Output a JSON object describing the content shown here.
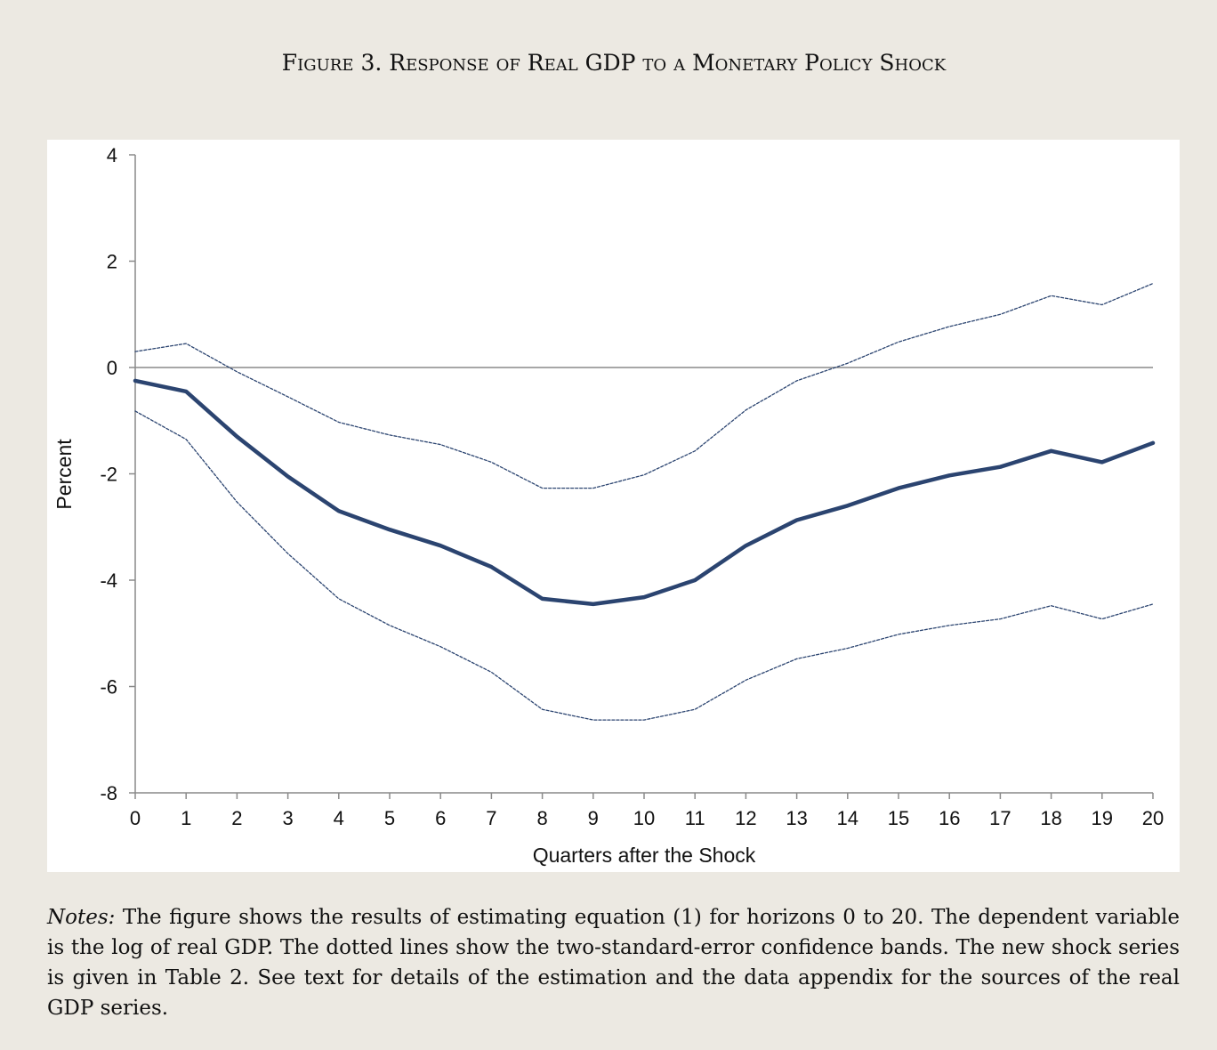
{
  "figure_title": "Figure 3. Response of Real GDP to a Monetary Policy Shock",
  "notes": {
    "lead": "Notes:",
    "text": "The figure shows the results of estimating equation (1) for horizons 0 to 20. The dependent variable is the log of real GDP. The dotted lines show the two-standard-error confidence bands. The new shock series is given in Table 2. See text for details of the estimation and the data appendix for the sources of the real GDP series."
  },
  "colors": {
    "background": "#ece9e2",
    "panel": "#ffffff",
    "line": "#2b4470",
    "axis": "#8a8a8a"
  },
  "chart_data": {
    "type": "line",
    "title": "",
    "xlabel": "Quarters after the Shock",
    "ylabel": "Percent",
    "x": [
      0,
      1,
      2,
      3,
      4,
      5,
      6,
      7,
      8,
      9,
      10,
      11,
      12,
      13,
      14,
      15,
      16,
      17,
      18,
      19,
      20
    ],
    "xlim": [
      0,
      20
    ],
    "ylim": [
      -8,
      4
    ],
    "yticks": [
      4,
      2,
      0,
      -2,
      -4,
      -6,
      -8
    ],
    "xticks": [
      "0",
      "1",
      "2",
      "3",
      "4",
      "5",
      "6",
      "7",
      "8",
      "9",
      "10",
      "11",
      "12",
      "13",
      "14",
      "15",
      "16",
      "17",
      "18",
      "19",
      "20"
    ],
    "ytick_labels": [
      "4",
      "2",
      "0",
      "-2",
      "-4",
      "-6",
      "-8"
    ],
    "zero_line": true,
    "grid": false,
    "legend": "none",
    "series": [
      {
        "role": "estimate",
        "style": "solid",
        "values": [
          -0.25,
          -0.45,
          -1.3,
          -2.05,
          -2.7,
          -3.05,
          -3.35,
          -3.75,
          -4.35,
          -4.45,
          -4.32,
          -4.0,
          -3.35,
          -2.87,
          -2.6,
          -2.27,
          -2.03,
          -1.87,
          -1.57,
          -1.78,
          -1.42
        ]
      },
      {
        "role": "upper-band",
        "style": "dotted",
        "values": [
          0.3,
          0.45,
          -0.08,
          -0.55,
          -1.03,
          -1.27,
          -1.45,
          -1.78,
          -2.27,
          -2.27,
          -2.02,
          -1.57,
          -0.8,
          -0.25,
          0.08,
          0.48,
          0.77,
          1.0,
          1.35,
          1.18,
          1.58
        ]
      },
      {
        "role": "lower-band",
        "style": "dotted",
        "values": [
          -0.82,
          -1.35,
          -2.53,
          -3.5,
          -4.35,
          -4.85,
          -5.25,
          -5.73,
          -6.43,
          -6.63,
          -6.63,
          -6.43,
          -5.88,
          -5.48,
          -5.28,
          -5.02,
          -4.85,
          -4.73,
          -4.48,
          -4.73,
          -4.45
        ]
      }
    ]
  }
}
